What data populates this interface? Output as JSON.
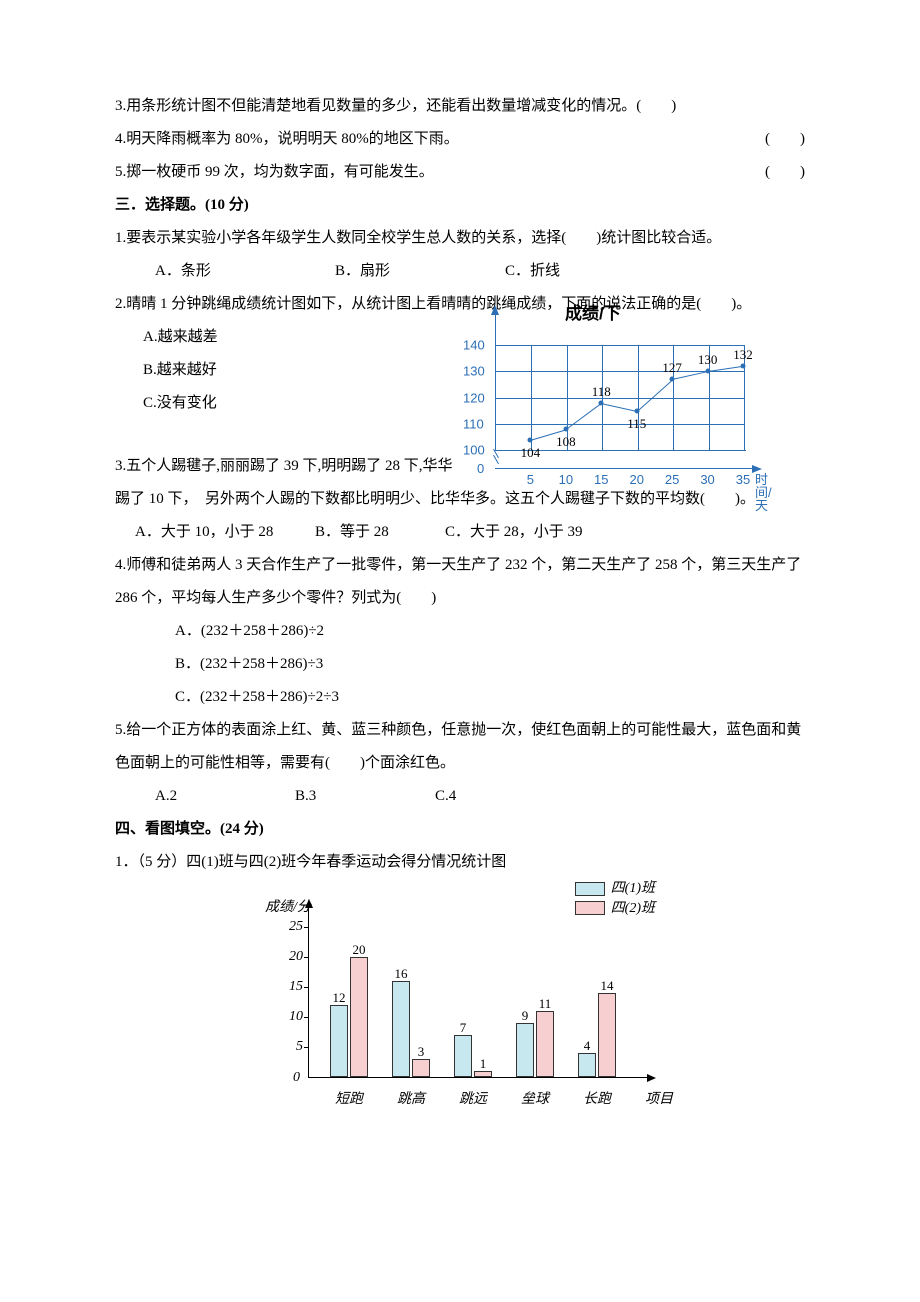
{
  "judge": {
    "q3": "3.用条形统计图不但能清楚地看见数量的多少，还能看出数量增减变化的情况。(　　)",
    "q4": {
      "text": "4.明天降雨概率为 80%，说明明天 80%的地区下雨。",
      "paren": "(　　)"
    },
    "q5": {
      "text": "5.掷一枚硬币 99 次，均为数字面，有可能发生。",
      "paren": "(　　)"
    }
  },
  "sec3": {
    "title": "三．选择题。(10 分)",
    "q1": {
      "stem": "1.要表示某实验小学各年级学生人数同全校学生总人数的关系，选择(　　)统计图比较合适。",
      "a": "A．条形",
      "b": "B．扇形",
      "c": "C．折线"
    },
    "q2": {
      "stem": "2.晴晴 1 分钟跳绳成绩统计图如下，从统计图上看晴晴的跳绳成绩，下面的说法正确的是(　　)。",
      "a": "A.越来越差",
      "b": "B.越来越好",
      "c": "C.没有变化"
    },
    "q3": {
      "stem_part1": "3.五个人踢毽子,丽丽踢了 39 下,明明踢了 28 下,华华",
      "stem_part2": "踢了 10 下，　另外两个人踢的下数都比明明少、比华华多。这五个人踢毽子下数的平均数(　　)。",
      "a": "A．大于 10，小于 28",
      "b": "B．等于 28",
      "c": "C．大于 28，小于 39"
    },
    "q4": {
      "stem": "4.师傅和徒弟两人 3 天合作生产了一批零件，第一天生产了 232 个，第二天生产了 258 个，第三天生产了 286 个，平均每人生产多少个零件？列式为(　　)",
      "a": "A．(232＋258＋286)÷2",
      "b": "B．(232＋258＋286)÷3",
      "c": "C．(232＋258＋286)÷2÷3"
    },
    "q5": {
      "stem": "5.给一个正方体的表面涂上红、黄、蓝三种颜色，任意抛一次，使红色面朝上的可能性最大，蓝色面和黄色面朝上的可能性相等，需要有(　　)个面涂红色。",
      "a": "A.2",
      "b": "B.3",
      "c": "C.4"
    }
  },
  "line_chart": {
    "title": "成绩/下",
    "x_axis_label": "时间/天",
    "ylim": [
      100,
      140
    ],
    "ytick_step": 10,
    "y_zero_label": "0",
    "yticks": [
      100,
      110,
      120,
      130,
      140
    ],
    "xticks": [
      5,
      10,
      15,
      20,
      25,
      30,
      35
    ],
    "values": [
      104,
      108,
      118,
      115,
      127,
      130,
      132
    ],
    "line_color": "#2c6fb5",
    "grid_color": "#2c6fb5",
    "background_color": "#ffffff"
  },
  "sec4": {
    "title": "四、看图填空。(24 分)",
    "q1": "1．（5 分）四(1)班与四(2)班今年春季运动会得分情况统计图"
  },
  "bar_chart": {
    "y_axis_label": "成绩/分",
    "x_axis_label": "项目",
    "legend": [
      "四(1)班",
      "四(2)班"
    ],
    "legend_colors": [
      "#c7e8ef",
      "#f7cfd0"
    ],
    "categories": [
      "短跑",
      "跳高",
      "跳远",
      "垒球",
      "长跑"
    ],
    "class1": [
      12,
      16,
      7,
      9,
      4
    ],
    "class2": [
      20,
      3,
      1,
      11,
      14
    ],
    "yticks": [
      5,
      10,
      15,
      20,
      25
    ],
    "ylim": [
      0,
      25
    ],
    "bar_border": "#333333",
    "axis_color": "#000000",
    "background_color": "#ffffff"
  }
}
